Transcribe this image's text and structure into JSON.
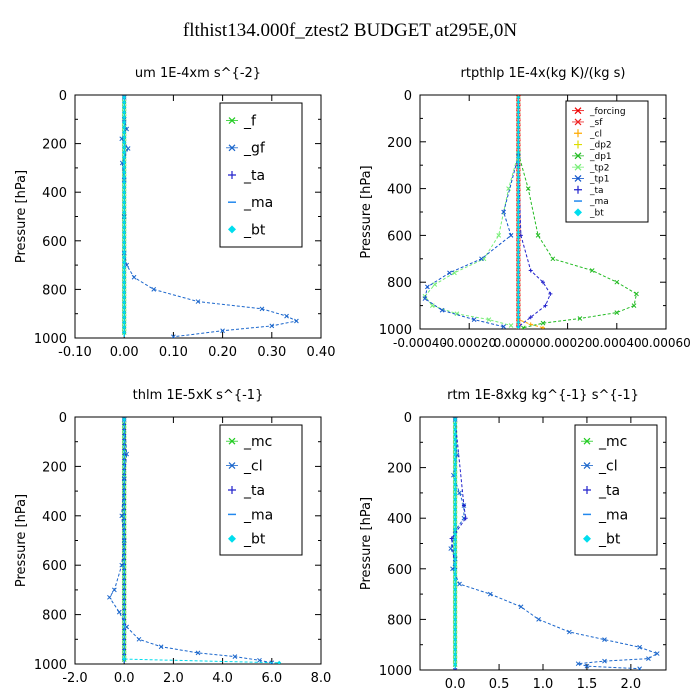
{
  "figure_title": "flthist134.000f_ztest2  BUDGET at295E,0N",
  "chart_data": [
    {
      "type": "line",
      "title": "um  1E-4xm s^{-2}",
      "ylabel": "Pressure [hPa]",
      "ylim": [
        1000,
        0
      ],
      "xlim": [
        -0.1,
        0.4
      ],
      "x_ticks": [
        "-0.10",
        "0.00",
        "0.10",
        "0.20",
        "0.30",
        "0.40"
      ],
      "x_tick_values": [
        -0.1,
        0.0,
        0.1,
        0.2,
        0.3,
        0.4
      ],
      "y_ticks": [
        "0",
        "200",
        "400",
        "600",
        "800",
        "1000"
      ],
      "y_tick_values": [
        0,
        200,
        400,
        600,
        800,
        1000
      ],
      "legend_position": "top-right",
      "series": [
        {
          "name": "_f",
          "color": "#22cc22",
          "marker": "x",
          "values": [
            [
              0.0,
              10
            ],
            [
              0.0,
              50
            ],
            [
              0.0,
              100
            ],
            [
              0.0,
              150
            ],
            [
              0.0,
              200
            ],
            [
              0.0,
              250
            ],
            [
              0.0,
              300
            ],
            [
              0.0,
              350
            ],
            [
              0.0,
              400
            ],
            [
              0.0,
              450
            ],
            [
              0.0,
              500
            ],
            [
              0.0,
              550
            ],
            [
              0.0,
              600
            ],
            [
              0.0,
              650
            ],
            [
              0.0,
              700
            ],
            [
              0.0,
              750
            ],
            [
              0.0,
              800
            ],
            [
              0.0,
              850
            ],
            [
              0.0,
              900
            ],
            [
              0.0,
              950
            ],
            [
              0.0,
              995
            ]
          ]
        },
        {
          "name": "_gf",
          "color": "#1a66cc",
          "marker": "x",
          "values": [
            [
              0.0,
              10
            ],
            [
              0.0,
              100
            ],
            [
              0.005,
              140
            ],
            [
              -0.005,
              180
            ],
            [
              0.008,
              220
            ],
            [
              -0.004,
              280
            ],
            [
              0.0,
              350
            ],
            [
              0.0,
              500
            ],
            [
              0.0,
              650
            ],
            [
              0.005,
              700
            ],
            [
              0.02,
              750
            ],
            [
              0.06,
              800
            ],
            [
              0.15,
              850
            ],
            [
              0.28,
              880
            ],
            [
              0.33,
              910
            ],
            [
              0.35,
              930
            ],
            [
              0.3,
              950
            ],
            [
              0.2,
              970
            ],
            [
              0.1,
              995
            ]
          ]
        },
        {
          "name": "_ta",
          "color": "#2222cc",
          "marker": "+",
          "values": [
            [
              0.0,
              10
            ],
            [
              0.0,
              300
            ],
            [
              0.0,
              600
            ],
            [
              0.0,
              900
            ],
            [
              0.0,
              995
            ]
          ]
        },
        {
          "name": "_ma",
          "color": "#2288ee",
          "marker": "-",
          "values": [
            [
              0.0,
              10
            ],
            [
              0.0,
              500
            ],
            [
              0.0,
              995
            ]
          ]
        },
        {
          "name": "_bt",
          "color": "#00ddee",
          "marker": "diamond",
          "values": [
            [
              0.0,
              10
            ],
            [
              0.0,
              500
            ],
            [
              0.0,
              995
            ]
          ]
        }
      ]
    },
    {
      "type": "line",
      "title": "rtpthlp  1E-4x(kg K)/(kg s)",
      "ylabel": "Pressure [hPa]",
      "ylim": [
        1000,
        0
      ],
      "xlim": [
        -0.0004,
        0.0006
      ],
      "x_ticks": [
        "-0.00040",
        "-0.00020",
        "0.00000",
        "0.00020",
        "0.00040",
        "0.00060"
      ],
      "x_tick_values": [
        -0.0004,
        -0.0002,
        0.0,
        0.0002,
        0.0004,
        0.0006
      ],
      "y_ticks": [
        "0",
        "200",
        "400",
        "600",
        "800",
        "1000"
      ],
      "y_tick_values": [
        0,
        200,
        400,
        600,
        800,
        1000
      ],
      "legend_position": "top-right",
      "series": [
        {
          "name": "_forcing",
          "color": "#ee0000",
          "marker": "x",
          "values": [
            [
              0.0,
              10
            ],
            [
              0.0,
              100
            ],
            [
              0.0,
              200
            ],
            [
              0.0,
              300
            ],
            [
              0.0,
              400
            ],
            [
              0.0,
              500
            ],
            [
              0.0,
              600
            ],
            [
              0.0,
              700
            ],
            [
              0.0,
              800
            ],
            [
              0.0,
              900
            ],
            [
              0.0,
              995
            ]
          ]
        },
        {
          "name": "_sf",
          "color": "#ee2222",
          "marker": "x",
          "values": [
            [
              0.0,
              10
            ],
            [
              0.0,
              500
            ],
            [
              0.0,
              995
            ]
          ]
        },
        {
          "name": "_cl",
          "color": "#ffaa00",
          "marker": "+",
          "values": [
            [
              0.0,
              10
            ],
            [
              0.0,
              960
            ],
            [
              5e-05,
              980
            ],
            [
              0.0001,
              995
            ]
          ]
        },
        {
          "name": "_dp2",
          "color": "#dddd00",
          "marker": "+",
          "values": [
            [
              0.0,
              10
            ],
            [
              0.0,
              995
            ]
          ]
        },
        {
          "name": "_dp1",
          "color": "#22bb22",
          "marker": "x",
          "values": [
            [
              0.0,
              250
            ],
            [
              4e-05,
              400
            ],
            [
              8e-05,
              600
            ],
            [
              0.00014,
              700
            ],
            [
              0.0003,
              750
            ],
            [
              0.0004,
              800
            ],
            [
              0.00048,
              850
            ],
            [
              0.00047,
              900
            ],
            [
              0.0004,
              930
            ],
            [
              0.00025,
              955
            ],
            [
              0.0001,
              975
            ],
            [
              2e-05,
              995
            ]
          ]
        },
        {
          "name": "_tp2",
          "color": "#77ee77",
          "marker": "x",
          "values": [
            [
              0.0,
              250
            ],
            [
              -4e-05,
              400
            ],
            [
              -8e-05,
              600
            ],
            [
              -0.00014,
              700
            ],
            [
              -0.00026,
              760
            ],
            [
              -0.00034,
              810
            ],
            [
              -0.00038,
              860
            ],
            [
              -0.00035,
              900
            ],
            [
              -0.00025,
              935
            ],
            [
              -0.00012,
              960
            ],
            [
              -3e-05,
              985
            ]
          ]
        },
        {
          "name": "_tp1",
          "color": "#1155cc",
          "marker": "x",
          "values": [
            [
              0.0,
              260
            ],
            [
              -6e-05,
              500
            ],
            [
              -3e-05,
              600
            ],
            [
              -0.00015,
              700
            ],
            [
              -0.00028,
              760
            ],
            [
              -0.00037,
              820
            ],
            [
              -0.00038,
              870
            ],
            [
              -0.00031,
              920
            ],
            [
              -0.00018,
              960
            ],
            [
              -6e-05,
              990
            ]
          ]
        },
        {
          "name": "_ta",
          "color": "#2222cc",
          "marker": "+",
          "values": [
            [
              0.0,
              300
            ],
            [
              1e-05,
              600
            ],
            [
              5e-05,
              750
            ],
            [
              0.0001,
              800
            ],
            [
              0.00013,
              850
            ],
            [
              0.00011,
              900
            ],
            [
              5e-05,
              950
            ],
            [
              0.0,
              990
            ]
          ]
        },
        {
          "name": "_ma",
          "color": "#2288ee",
          "marker": "-",
          "values": [
            [
              0.0,
              10
            ],
            [
              0.0,
              995
            ]
          ]
        },
        {
          "name": "_bt",
          "color": "#00ddee",
          "marker": "diamond",
          "values": [
            [
              0.0,
              10
            ],
            [
              0.0,
              995
            ]
          ]
        }
      ]
    },
    {
      "type": "line",
      "title": "thlm  1E-5xK s^{-1}",
      "ylabel": "Pressure [hPa]",
      "ylim": [
        1000,
        0
      ],
      "xlim": [
        -2.0,
        8.0
      ],
      "x_ticks": [
        "-2.0",
        "0.0",
        "2.0",
        "4.0",
        "6.0",
        "8.0"
      ],
      "x_tick_values": [
        -2.0,
        0.0,
        2.0,
        4.0,
        6.0,
        8.0
      ],
      "y_ticks": [
        "0",
        "200",
        "400",
        "600",
        "800",
        "1000"
      ],
      "y_tick_values": [
        0,
        200,
        400,
        600,
        800,
        1000
      ],
      "legend_position": "top-right",
      "series": [
        {
          "name": "_mc",
          "color": "#22cc22",
          "marker": "x",
          "values": [
            [
              0.0,
              10
            ],
            [
              0.0,
              100
            ],
            [
              0.0,
              200
            ],
            [
              0.0,
              300
            ],
            [
              0.0,
              400
            ],
            [
              0.0,
              500
            ],
            [
              0.0,
              600
            ],
            [
              0.0,
              700
            ],
            [
              0.0,
              800
            ],
            [
              0.0,
              900
            ],
            [
              0.0,
              995
            ]
          ]
        },
        {
          "name": "_cl",
          "color": "#1a66cc",
          "marker": "x",
          "values": [
            [
              0.0,
              10
            ],
            [
              0.1,
              150
            ],
            [
              0.0,
              250
            ],
            [
              -0.1,
              400
            ],
            [
              0.0,
              500
            ],
            [
              -0.1,
              600
            ],
            [
              -0.4,
              700
            ],
            [
              -0.6,
              730
            ],
            [
              -0.2,
              790
            ],
            [
              0.1,
              850
            ],
            [
              0.6,
              900
            ],
            [
              1.5,
              930
            ],
            [
              3.0,
              955
            ],
            [
              4.5,
              970
            ],
            [
              5.5,
              985
            ],
            [
              6.0,
              995
            ]
          ]
        },
        {
          "name": "_ta",
          "color": "#2222cc",
          "marker": "+",
          "values": [
            [
              0.0,
              10
            ],
            [
              0.0,
              300
            ],
            [
              0.0,
              600
            ],
            [
              0.0,
              900
            ],
            [
              0.0,
              995
            ]
          ]
        },
        {
          "name": "_ma",
          "color": "#2288ee",
          "marker": "-",
          "values": [
            [
              0.0,
              10
            ],
            [
              0.0,
              995
            ]
          ]
        },
        {
          "name": "_bt",
          "color": "#00ddee",
          "marker": "diamond",
          "values": [
            [
              0.0,
              10
            ],
            [
              0.0,
              980
            ],
            [
              6.3,
              995
            ]
          ]
        }
      ]
    },
    {
      "type": "line",
      "title": "rtm  1E-8xkg kg^{-1} s^{-1}",
      "ylabel": "Pressure [hPa]",
      "ylim": [
        1000,
        0
      ],
      "xlim": [
        -0.4,
        2.4
      ],
      "x_ticks": [
        "0.0",
        "0.5",
        "1.0",
        "1.5",
        "2.0"
      ],
      "x_tick_values": [
        0.0,
        0.5,
        1.0,
        1.5,
        2.0
      ],
      "y_ticks": [
        "0",
        "200",
        "400",
        "600",
        "800",
        "1000"
      ],
      "y_tick_values": [
        0,
        200,
        400,
        600,
        800,
        1000
      ],
      "legend_position": "top-right",
      "series": [
        {
          "name": "_mc",
          "color": "#22cc22",
          "marker": "x",
          "values": [
            [
              0.0,
              10
            ],
            [
              0.0,
              100
            ],
            [
              0.0,
              200
            ],
            [
              0.0,
              300
            ],
            [
              0.0,
              400
            ],
            [
              0.0,
              500
            ],
            [
              0.0,
              600
            ],
            [
              0.0,
              700
            ],
            [
              0.0,
              800
            ],
            [
              0.0,
              900
            ],
            [
              0.0,
              995
            ]
          ]
        },
        {
          "name": "_cl",
          "color": "#1a66cc",
          "marker": "x",
          "values": [
            [
              0.0,
              10
            ],
            [
              0.02,
              150
            ],
            [
              -0.02,
              230
            ],
            [
              0.05,
              300
            ],
            [
              0.1,
              350
            ],
            [
              0.1,
              400
            ],
            [
              0.0,
              450
            ],
            [
              -0.05,
              520
            ],
            [
              0.0,
              560
            ],
            [
              -0.03,
              600
            ],
            [
              0.05,
              660
            ],
            [
              0.4,
              700
            ],
            [
              0.75,
              750
            ],
            [
              0.95,
              800
            ],
            [
              1.3,
              850
            ],
            [
              1.7,
              880
            ],
            [
              2.1,
              910
            ],
            [
              2.3,
              935
            ],
            [
              2.2,
              955
            ],
            [
              1.7,
              965
            ],
            [
              1.4,
              975
            ],
            [
              1.5,
              985
            ],
            [
              2.1,
              995
            ]
          ]
        },
        {
          "name": "_ta",
          "color": "#2222cc",
          "marker": "+",
          "values": [
            [
              0.0,
              10
            ],
            [
              0.1,
              350
            ],
            [
              0.12,
              400
            ],
            [
              -0.04,
              480
            ],
            [
              0.0,
              600
            ],
            [
              0.0,
              995
            ]
          ]
        },
        {
          "name": "_ma",
          "color": "#2288ee",
          "marker": "-",
          "values": [
            [
              0.0,
              10
            ],
            [
              0.0,
              995
            ]
          ]
        },
        {
          "name": "_bt",
          "color": "#00ddee",
          "marker": "diamond",
          "values": [
            [
              0.0,
              10
            ],
            [
              0.0,
              995
            ]
          ]
        }
      ]
    }
  ]
}
